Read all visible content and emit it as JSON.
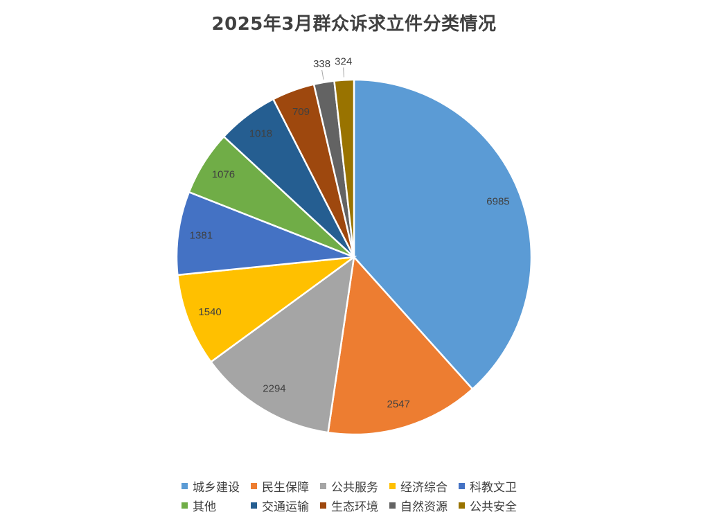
{
  "chart_data": {
    "type": "pie",
    "title": "2025年3月群众诉求立件分类情况",
    "categories": [
      "城乡建设",
      "民生保障",
      "公共服务",
      "经济综合",
      "科教文卫",
      "其他",
      "交通运输",
      "生态环境",
      "自然资源",
      "公共安全"
    ],
    "values": [
      6985,
      2547,
      2294,
      1540,
      1381,
      1076,
      1018,
      709,
      338,
      324
    ],
    "colors": [
      "#5B9BD5",
      "#ED7D31",
      "#A5A5A5",
      "#FFC000",
      "#4472C4",
      "#70AD47",
      "#255E91",
      "#9E480E",
      "#636363",
      "#997300"
    ],
    "start_angle": "12 o'clock",
    "direction": "clockwise",
    "data_labels": true,
    "legend_position": "bottom"
  }
}
